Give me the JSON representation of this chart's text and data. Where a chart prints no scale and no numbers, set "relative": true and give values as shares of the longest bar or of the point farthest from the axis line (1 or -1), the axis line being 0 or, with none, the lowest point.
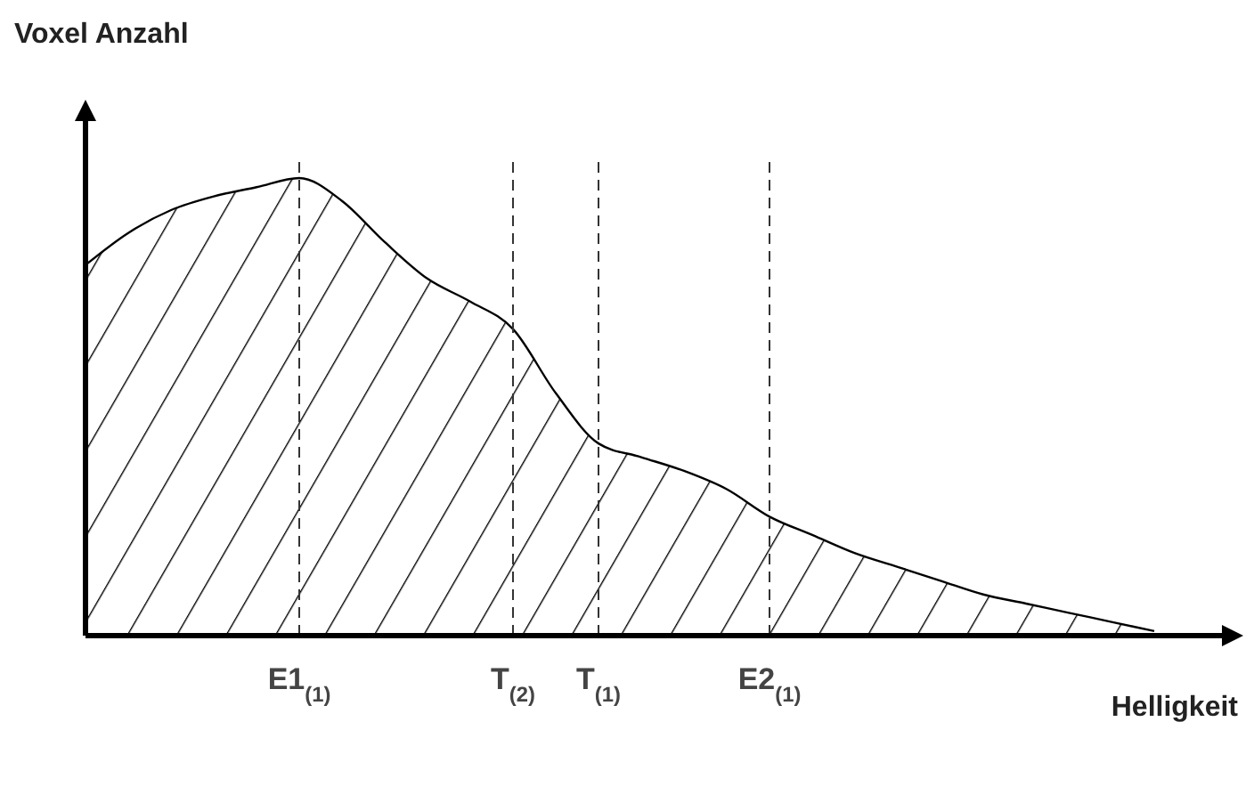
{
  "chart_data": {
    "type": "area",
    "relative": true,
    "xlabel": "Helligkeit",
    "ylabel": "Voxel Anzahl",
    "grid": "x",
    "color": "#000000",
    "categories": [
      null,
      null,
      null,
      null,
      null,
      "E1$_{(1)}$",
      null,
      null,
      null,
      null,
      "T$_{(2)}$",
      null,
      "T$_{(1)}$",
      null,
      null,
      null,
      "E2$_{(1)}$",
      null,
      null,
      null,
      null,
      null,
      null,
      null,
      null,
      null
    ],
    "values": [
      0.81,
      0.88,
      0.93,
      0.96,
      0.98,
      1.0,
      0.95,
      0.86,
      0.78,
      0.73,
      0.67,
      0.53,
      0.42,
      0.39,
      0.36,
      0.32,
      0.26,
      0.22,
      0.18,
      0.15,
      0.12,
      0.09,
      0.07,
      0.05,
      0.03,
      0.01
    ]
  }
}
